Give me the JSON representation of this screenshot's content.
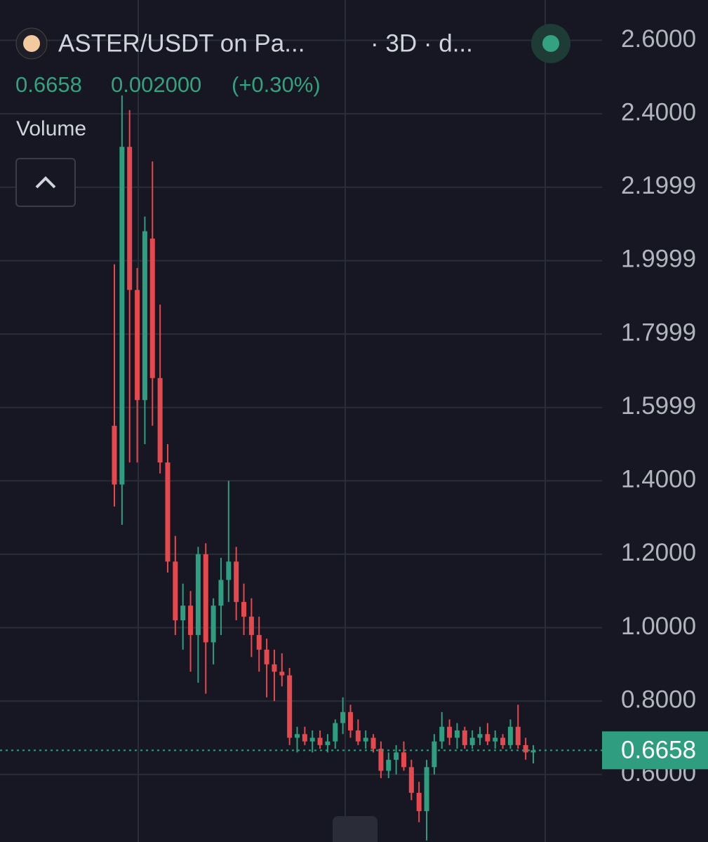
{
  "header": {
    "title": "ASTER/USDT on Pa...",
    "interval": "· 3D · d...",
    "change": "0.002000",
    "change_pct": "(+0.30%)",
    "volume_label": "Volume"
  },
  "chart_data": {
    "type": "candlestick",
    "open": [
      1.55,
      1.39,
      2.31,
      1.92,
      1.62,
      2.06,
      1.68,
      1.45,
      1.18,
      1.02,
      1.06,
      0.98,
      1.2,
      0.96,
      1.06,
      1.13,
      1.18,
      1.07,
      1.03,
      0.98,
      0.94,
      0.9,
      0.88,
      0.87,
      0.7,
      0.71,
      0.69,
      0.7,
      0.68,
      0.69,
      0.74,
      0.77,
      0.72,
      0.69,
      0.7,
      0.67,
      0.61,
      0.64,
      0.66,
      0.62,
      0.55,
      0.5,
      0.62,
      0.69,
      0.73,
      0.7,
      0.72,
      0.68,
      0.7,
      0.71,
      0.69,
      0.7,
      0.68,
      0.73,
      0.68,
      0.66
    ],
    "high": [
      1.99,
      2.45,
      2.41,
      1.98,
      2.12,
      2.27,
      1.88,
      1.5,
      1.25,
      1.12,
      1.1,
      1.22,
      1.23,
      1.08,
      1.19,
      1.4,
      1.22,
      1.12,
      1.08,
      1.03,
      0.97,
      0.94,
      0.93,
      0.89,
      0.73,
      0.73,
      0.72,
      0.72,
      0.71,
      0.75,
      0.81,
      0.79,
      0.75,
      0.72,
      0.71,
      0.69,
      0.66,
      0.68,
      0.69,
      0.64,
      0.58,
      0.64,
      0.71,
      0.77,
      0.75,
      0.74,
      0.73,
      0.72,
      0.73,
      0.74,
      0.72,
      0.71,
      0.75,
      0.79,
      0.7,
      0.68
    ],
    "low": [
      1.33,
      1.28,
      1.45,
      1.45,
      1.5,
      1.55,
      1.42,
      1.15,
      0.98,
      0.94,
      0.88,
      0.85,
      0.82,
      0.9,
      0.98,
      1.07,
      1.02,
      0.98,
      0.92,
      0.88,
      0.81,
      0.8,
      0.84,
      0.68,
      0.66,
      0.68,
      0.66,
      0.67,
      0.66,
      0.67,
      0.71,
      0.7,
      0.68,
      0.67,
      0.66,
      0.59,
      0.59,
      0.6,
      0.61,
      0.53,
      0.47,
      0.42,
      0.6,
      0.67,
      0.68,
      0.67,
      0.67,
      0.67,
      0.68,
      0.68,
      0.67,
      0.67,
      0.67,
      0.67,
      0.64,
      0.63
    ],
    "close": [
      1.39,
      2.31,
      1.92,
      1.62,
      2.08,
      1.68,
      1.45,
      1.18,
      1.02,
      1.06,
      0.98,
      1.2,
      0.96,
      1.06,
      1.13,
      1.18,
      1.07,
      1.03,
      0.98,
      0.94,
      0.9,
      0.88,
      0.87,
      0.7,
      0.71,
      0.69,
      0.7,
      0.68,
      0.69,
      0.74,
      0.77,
      0.72,
      0.69,
      0.7,
      0.67,
      0.61,
      0.64,
      0.66,
      0.62,
      0.55,
      0.5,
      0.62,
      0.69,
      0.73,
      0.7,
      0.72,
      0.68,
      0.7,
      0.71,
      0.69,
      0.7,
      0.68,
      0.73,
      0.68,
      0.66,
      0.6658
    ],
    "current_price": 0.6658,
    "ylim": [
      0.416,
      2.71
    ],
    "yticks": [
      {
        "value": 0.6,
        "label": "0.6000"
      },
      {
        "value": 0.8,
        "label": "0.8000"
      },
      {
        "value": 1.0,
        "label": "1.0000"
      },
      {
        "value": 1.2,
        "label": "1.2000"
      },
      {
        "value": 1.4,
        "label": "1.4000"
      },
      1.5999,
      1.7999,
      1.9999,
      2.1999,
      {
        "value": 2.4,
        "label": "2.4000"
      },
      {
        "value": 2.6,
        "label": "2.6000"
      }
    ],
    "up_color": "#2f9e80",
    "down_color": "#e5484d",
    "grid": true
  }
}
